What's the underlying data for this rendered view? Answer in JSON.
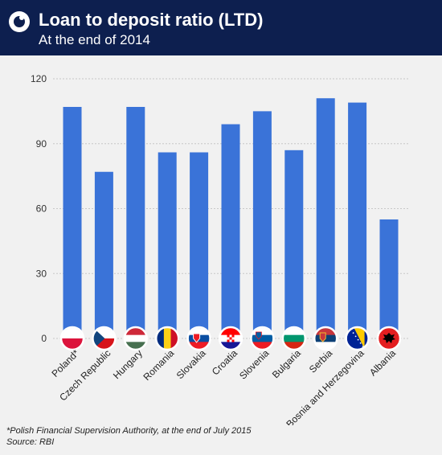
{
  "header": {
    "title": "Loan to deposit ratio (LTD)",
    "subtitle": "At the end of 2014"
  },
  "chart_data": {
    "type": "bar",
    "categories": [
      "Poland*",
      "Czech Republic",
      "Hungary",
      "Romania",
      "Slovakia",
      "Croatia",
      "Slovenia",
      "Bulgaria",
      "Serbia",
      "Bosnia and Herzegovina",
      "Albania"
    ],
    "values": [
      107,
      77,
      107,
      86,
      86,
      99,
      105,
      87,
      111,
      109,
      55
    ],
    "yticks": [
      0,
      30,
      60,
      90,
      120
    ],
    "ylim": [
      0,
      120
    ],
    "title": "Loan to deposit ratio (LTD)",
    "subtitle": "At the end of 2014",
    "xlabel": "",
    "ylabel": "",
    "grid": true,
    "bar_color": "#3a73d8"
  },
  "flags": [
    "poland-flag-icon",
    "czech-republic-flag-icon",
    "hungary-flag-icon",
    "romania-flag-icon",
    "slovakia-flag-icon",
    "croatia-flag-icon",
    "slovenia-flag-icon",
    "bulgaria-flag-icon",
    "serbia-flag-icon",
    "bosnia-and-herzegovina-flag-icon",
    "albania-flag-icon"
  ],
  "footnote": "*Polish Financial Supervision Authority, at the end of July 2015",
  "source": "Source: RBI",
  "colors": {
    "header_bg": "#0d1f4f",
    "background": "#f1f1f1",
    "bar": "#3a73d8"
  }
}
